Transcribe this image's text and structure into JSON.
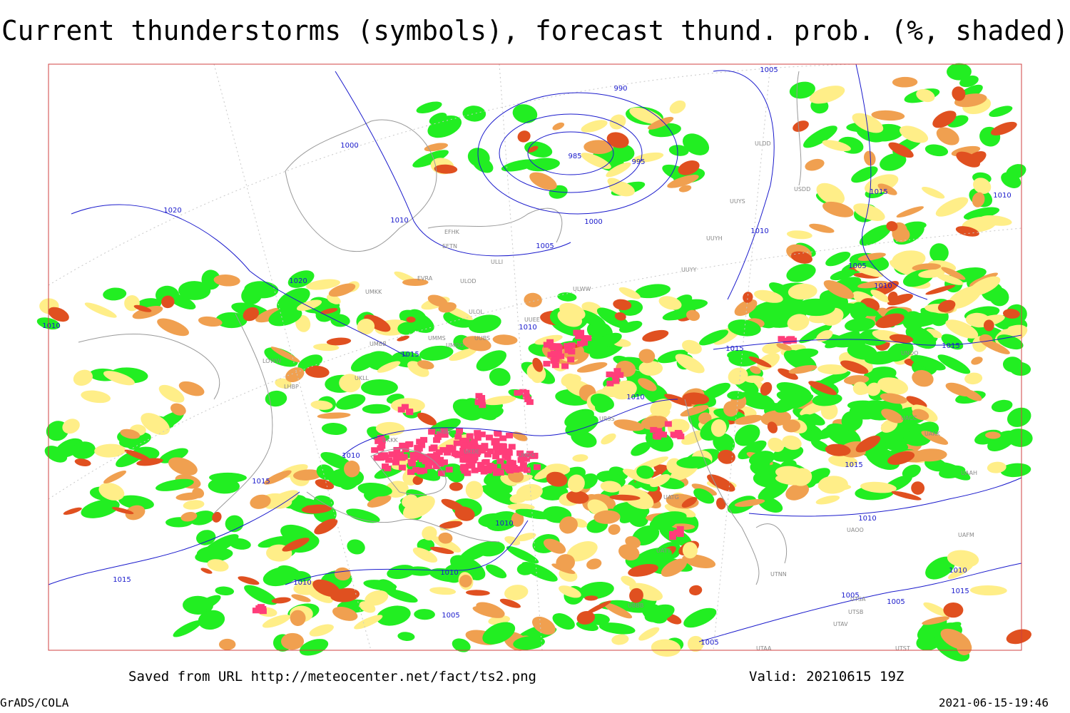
{
  "header": {
    "title": "Current thunderstorms (symbols), forecast thund. prob. (%, shaded)"
  },
  "footer": {
    "source": "Saved from URL http://meteocenter.net/fact/ts2.png",
    "valid": "Valid: 20210615 19Z",
    "software": "GrADS/COLA",
    "timestamp": "2021-06-15-19:46"
  },
  "map": {
    "isobar_labels": [
      "990",
      "985",
      "995",
      "1000",
      "1005",
      "1015",
      "1010",
      "1020",
      "1020",
      "1010",
      "1005",
      "1010",
      "1000",
      "1010",
      "1005",
      "1010",
      "1015",
      "1015",
      "1010",
      "1010",
      "1015",
      "1015",
      "1010",
      "1015",
      "1010",
      "1010",
      "1015",
      "1010",
      "1005",
      "1005",
      "1005",
      "1010",
      "1015",
      "1005",
      "1010"
    ],
    "station_labels": [
      "EFHK",
      "EETN",
      "EVRA",
      "ULOD",
      "ULLI",
      "UMKK",
      "ULOL",
      "UMMS",
      "UMOO",
      "UUBS",
      "UMBB",
      "UUEE",
      "ULWW",
      "UKLL",
      "LOWW",
      "LHBP",
      "UKKK",
      "UKBB",
      "UKDE",
      "UKOO",
      "UUYY",
      "UUYH",
      "UUYS",
      "ULDD",
      "USDD",
      "UNOO",
      "UACC",
      "UAKK",
      "UAAH",
      "UAOO",
      "UAFM",
      "UTNN",
      "UTSA",
      "UTSB",
      "UTAV",
      "UTAA",
      "UTST",
      "UATG",
      "UBBB",
      "URSS",
      "UATT"
    ]
  }
}
